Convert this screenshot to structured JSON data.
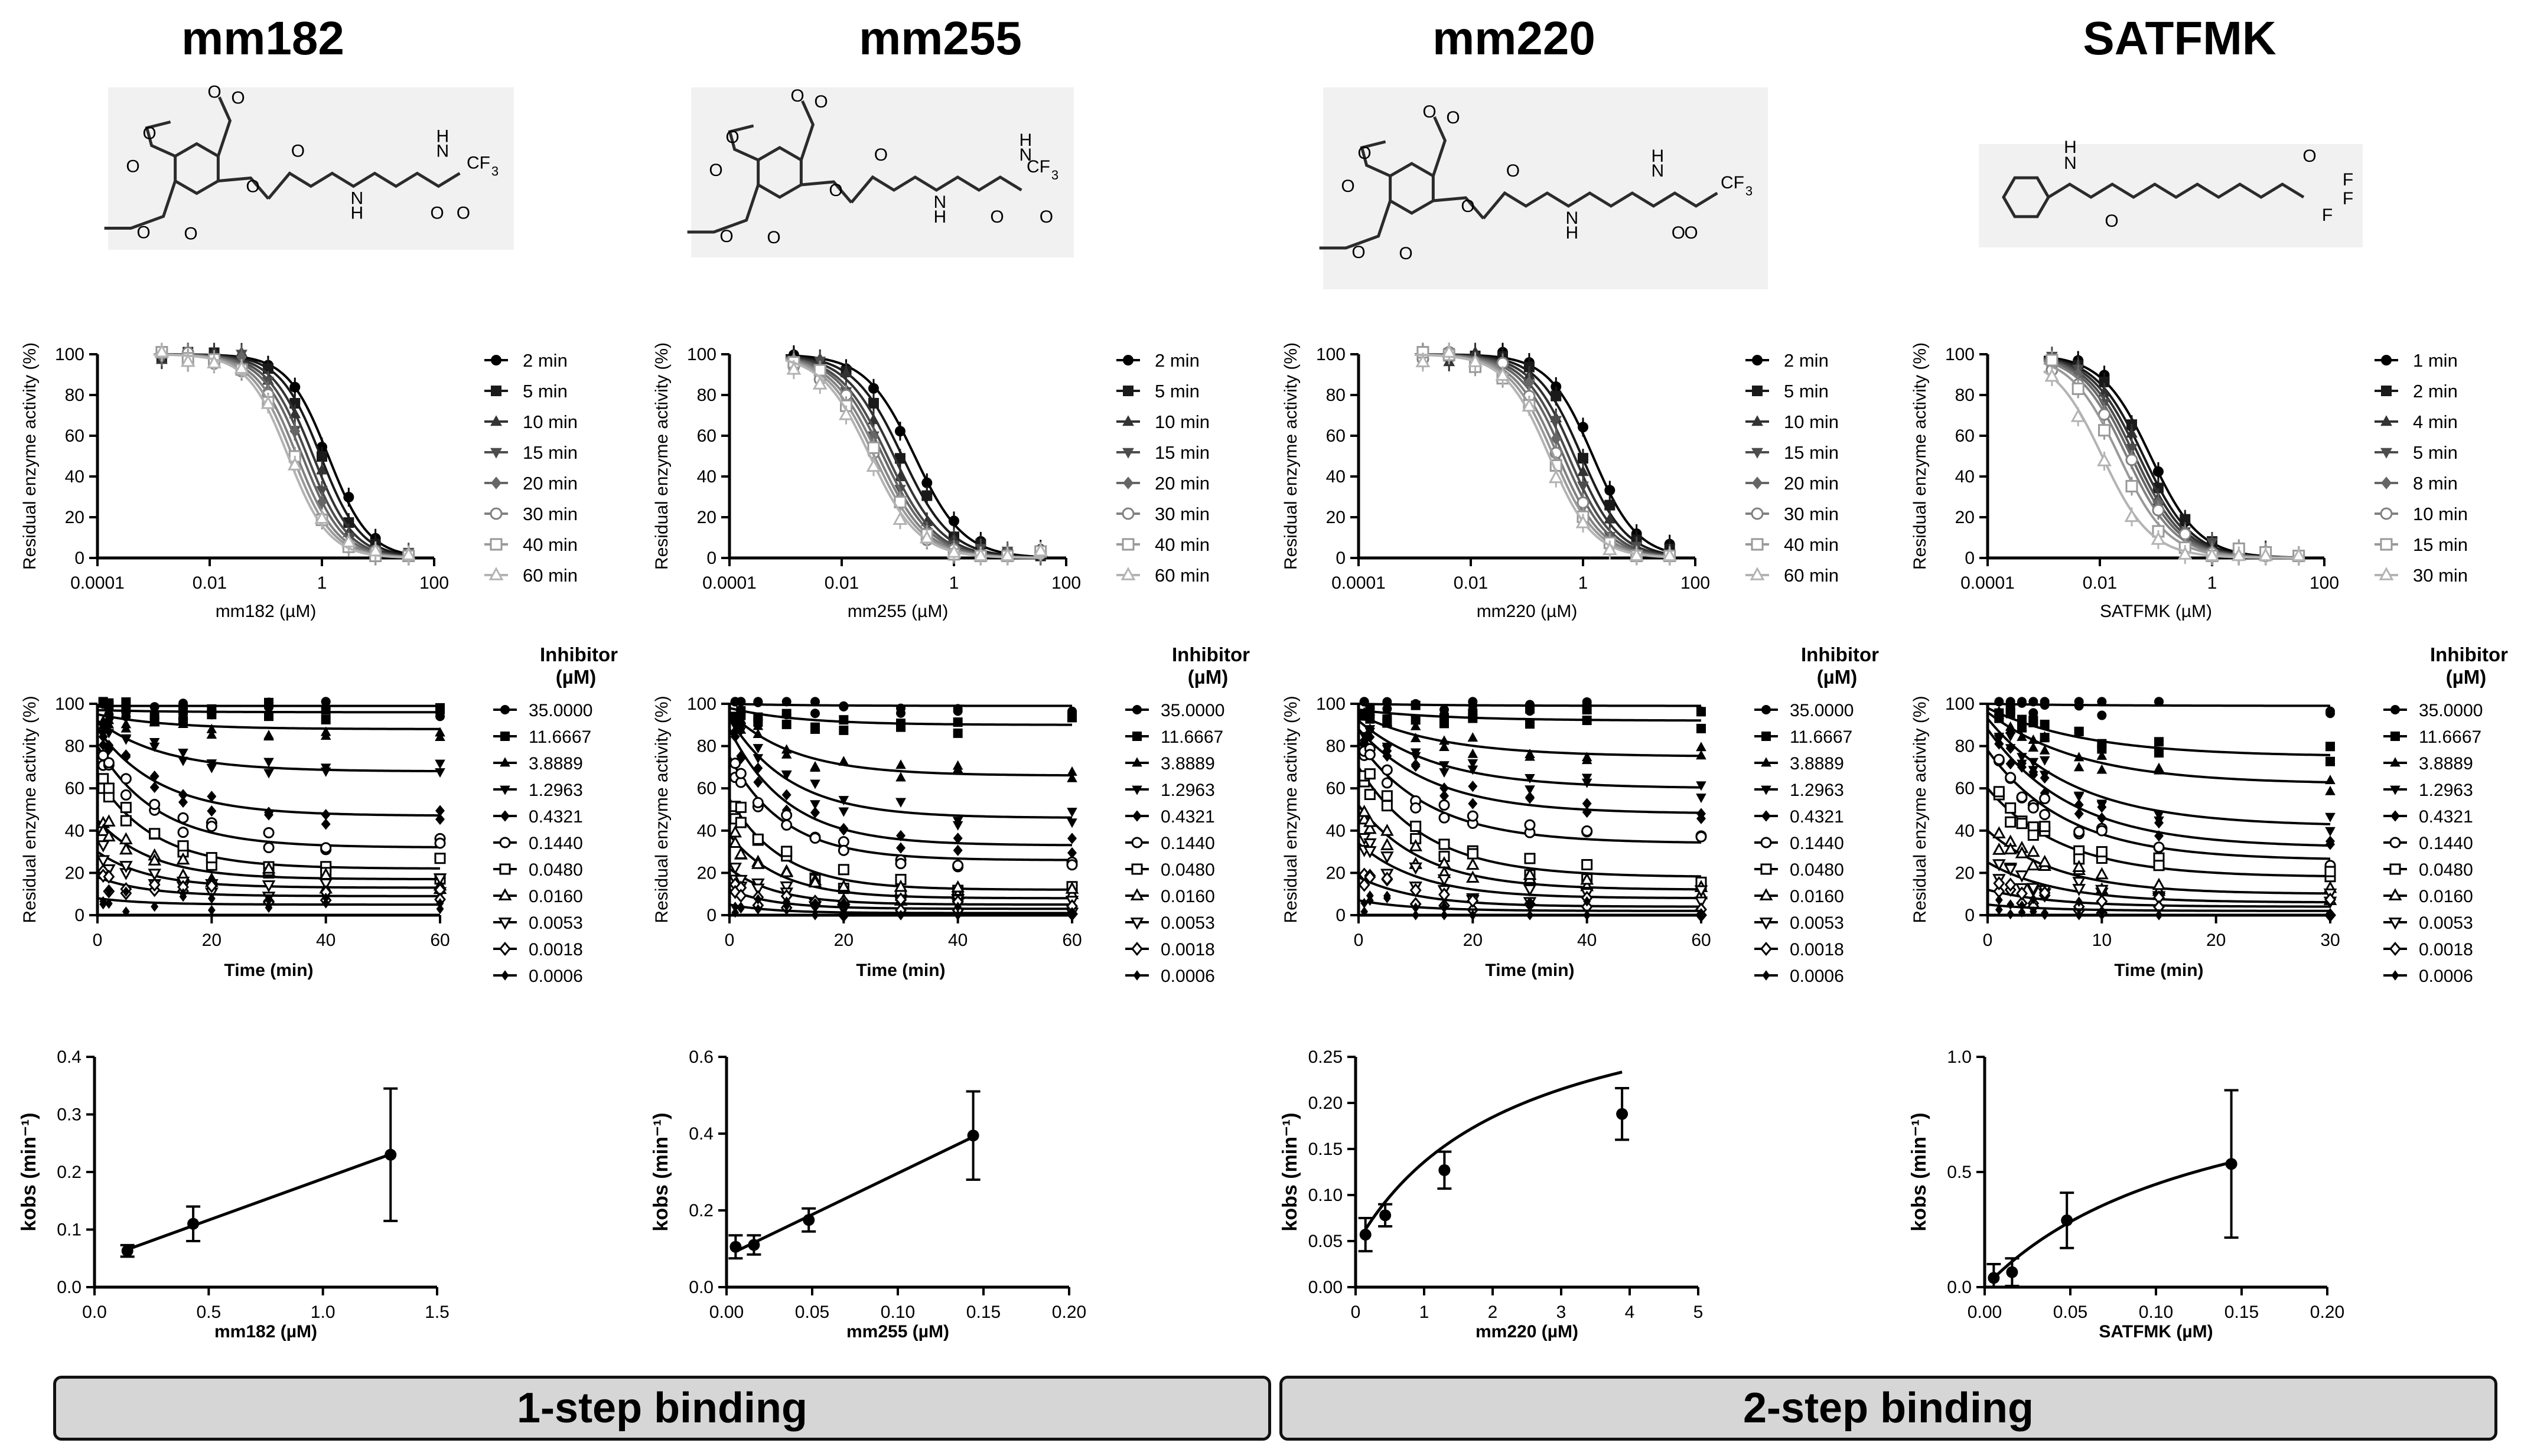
{
  "compounds": [
    {
      "name": "mm182",
      "structure": {
        "groups": [
          "O",
          "O",
          "O",
          "O",
          "O",
          "O",
          "O",
          "O",
          "N",
          "H",
          "N",
          "H",
          "O",
          "O",
          "CF",
          "3"
        ]
      }
    },
    {
      "name": "mm255",
      "structure": {
        "groups": [
          "O",
          "O",
          "O",
          "O",
          "O",
          "O",
          "O",
          "O",
          "N",
          "H",
          "N",
          "H",
          "O",
          "O",
          "CF",
          "3"
        ]
      }
    },
    {
      "name": "mm220",
      "structure": {
        "groups": [
          "O",
          "O",
          "O",
          "O",
          "O",
          "O",
          "O",
          "O",
          "N",
          "H",
          "N",
          "H",
          "O",
          "O",
          "CF",
          "3"
        ]
      }
    },
    {
      "name": "SATFMK",
      "structure": {
        "groups": [
          "H",
          "N",
          "O",
          "O",
          "F",
          "F",
          "F"
        ]
      }
    }
  ],
  "banners": [
    {
      "label": "1-step binding"
    },
    {
      "label": "2-step binding"
    }
  ],
  "chart_data": [
    {
      "type": "line",
      "panel": "dose-response",
      "compound": "mm182",
      "xlabel": "mm182 (µM)",
      "ylabel": "Residual enzyme activity (%)",
      "xscale": "log",
      "xlim": [
        0.0001,
        100
      ],
      "ylim": [
        0,
        100
      ],
      "xticks": [
        "0.0001",
        "0.01",
        "1",
        "100"
      ],
      "yticks": [
        "0",
        "20",
        "40",
        "60",
        "80",
        "100"
      ],
      "legend": [
        "2 min",
        "5 min",
        "10 min",
        "15 min",
        "20 min",
        "30 min",
        "40 min",
        "60 min"
      ],
      "ic50": [
        1.3,
        0.95,
        0.7,
        0.55,
        0.45,
        0.36,
        0.3,
        0.25
      ],
      "hill": 1.2,
      "x": [
        0.0014,
        0.0041,
        0.012,
        0.037,
        0.11,
        0.33,
        1.0,
        3.0,
        9.0,
        35.0
      ]
    },
    {
      "type": "line",
      "panel": "dose-response",
      "compound": "mm255",
      "xlabel": "mm255 (µM)",
      "ylabel": "Residual enzyme activity (%)",
      "xscale": "log",
      "xlim": [
        0.0001,
        100
      ],
      "ylim": [
        0,
        100
      ],
      "xticks": [
        "0.0001",
        "0.01",
        "1",
        "100"
      ],
      "yticks": [
        "0",
        "20",
        "40",
        "60",
        "80",
        "100"
      ],
      "legend": [
        "2 min",
        "5 min",
        "10 min",
        "15 min",
        "20 min",
        "30 min",
        "40 min",
        "60 min"
      ],
      "ic50": [
        0.2,
        0.12,
        0.085,
        0.065,
        0.055,
        0.045,
        0.038,
        0.032
      ],
      "hill": 1.0,
      "x": [
        0.0014,
        0.0041,
        0.012,
        0.037,
        0.11,
        0.33,
        1.0,
        3.0,
        9.0,
        35.0
      ]
    },
    {
      "type": "line",
      "panel": "dose-response",
      "compound": "mm220",
      "xlabel": "mm220 (µM)",
      "ylabel": "Residual enzyme activity (%)",
      "xscale": "log",
      "xlim": [
        0.0001,
        100
      ],
      "ylim": [
        0,
        100
      ],
      "xticks": [
        "0.0001",
        "0.01",
        "1",
        "100"
      ],
      "yticks": [
        "0",
        "20",
        "40",
        "60",
        "80",
        "100"
      ],
      "legend": [
        "2 min",
        "5 min",
        "10 min",
        "15 min",
        "20 min",
        "30 min",
        "40 min",
        "60 min"
      ],
      "ic50": [
        1.5,
        0.95,
        0.7,
        0.55,
        0.45,
        0.36,
        0.3,
        0.25
      ],
      "hill": 1.1,
      "x": [
        0.0014,
        0.0041,
        0.012,
        0.037,
        0.11,
        0.33,
        1.0,
        3.0,
        9.0,
        35.0
      ]
    },
    {
      "type": "line",
      "panel": "dose-response",
      "compound": "SATFMK",
      "xlabel": "SATFMK (µM)",
      "ylabel": "Residual enzyme activity (%)",
      "xscale": "log",
      "xlim": [
        0.0001,
        100
      ],
      "ylim": [
        0,
        100
      ],
      "xticks": [
        "0.0001",
        "0.01",
        "1",
        "100"
      ],
      "yticks": [
        "0",
        "20",
        "40",
        "60",
        "80",
        "100"
      ],
      "legend": [
        "1 min",
        "2 min",
        "4 min",
        "5 min",
        "8 min",
        "10 min",
        "15 min",
        "30 min"
      ],
      "ic50": [
        0.08,
        0.06,
        0.05,
        0.042,
        0.036,
        0.03,
        0.022,
        0.011
      ],
      "hill": 1.0,
      "x": [
        0.0014,
        0.0041,
        0.012,
        0.037,
        0.11,
        0.33,
        1.0,
        3.0,
        9.0,
        35.0
      ]
    },
    {
      "type": "scatter",
      "panel": "progress",
      "compound": "mm182",
      "xlabel": "Time (min)",
      "ylabel": "Residual enzyme activity (%)",
      "xlim": [
        0,
        60
      ],
      "ylim": [
        0,
        100
      ],
      "xticks": [
        "0",
        "20",
        "40",
        "60"
      ],
      "yticks": [
        "0",
        "20",
        "40",
        "60",
        "80",
        "100"
      ],
      "legend_title": "Inhibitor (µM)",
      "concentrations": [
        "35.0000",
        "11.6667",
        "3.8889",
        "1.2963",
        "0.4321",
        "0.1440",
        "0.0480",
        "0.0160",
        "0.0053",
        "0.0018",
        "0.0006"
      ],
      "times": [
        1,
        2,
        5,
        10,
        15,
        20,
        30,
        40,
        60
      ],
      "v0": [
        99,
        97,
        95,
        92,
        88,
        80,
        65,
        45,
        30,
        18,
        8
      ],
      "vs": [
        99,
        96,
        88,
        68,
        47,
        32,
        22,
        17,
        13,
        9,
        5
      ],
      "kobs": 0.12
    },
    {
      "type": "scatter",
      "panel": "progress",
      "compound": "mm255",
      "xlabel": "Time (min)",
      "ylabel": "Residual enzyme activity (%)",
      "xlim": [
        0,
        60
      ],
      "ylim": [
        0,
        100
      ],
      "xticks": [
        "0",
        "20",
        "40",
        "60"
      ],
      "yticks": [
        "0",
        "20",
        "40",
        "60",
        "80",
        "100"
      ],
      "legend_title": "Inhibitor (µM)",
      "concentrations": [
        "35.0000",
        "11.6667",
        "3.8889",
        "1.2963",
        "0.4321",
        "0.1440",
        "0.0480",
        "0.0160",
        "0.0053",
        "0.0018",
        "0.0006"
      ],
      "times": [
        1,
        2,
        5,
        10,
        15,
        20,
        30,
        40,
        60
      ],
      "v0": [
        100,
        98,
        96,
        93,
        88,
        75,
        55,
        38,
        22,
        12,
        5
      ],
      "vs": [
        99,
        90,
        66,
        46,
        33,
        26,
        12,
        8,
        5,
        3,
        1
      ],
      "kobs": 0.13
    },
    {
      "type": "scatter",
      "panel": "progress",
      "compound": "mm220",
      "xlabel": "Time (min)",
      "ylabel": "Residual enzyme activity (%)",
      "xlim": [
        0,
        60
      ],
      "ylim": [
        0,
        100
      ],
      "xticks": [
        "0",
        "20",
        "40",
        "60"
      ],
      "yticks": [
        "0",
        "20",
        "40",
        "60",
        "80",
        "100"
      ],
      "legend_title": "Inhibitor (µM)",
      "concentrations": [
        "35.0000",
        "11.6667",
        "3.8889",
        "1.2963",
        "0.4321",
        "0.1440",
        "0.0480",
        "0.0160",
        "0.0053",
        "0.0018",
        "0.0006"
      ],
      "times": [
        1,
        2,
        5,
        10,
        15,
        20,
        30,
        40,
        60
      ],
      "v0": [
        100,
        97,
        95,
        92,
        88,
        82,
        70,
        52,
        34,
        18,
        7
      ],
      "vs": [
        99,
        92,
        75,
        60,
        48,
        34,
        18,
        12,
        8,
        4,
        2
      ],
      "kobs": 0.1
    },
    {
      "type": "scatter",
      "panel": "progress",
      "compound": "SATFMK",
      "xlabel": "Time (min)",
      "ylabel": "Residual enzyme activity (%)",
      "xlim": [
        0,
        30
      ],
      "ylim": [
        0,
        100
      ],
      "xticks": [
        "0",
        "10",
        "20",
        "30"
      ],
      "yticks": [
        "0",
        "20",
        "40",
        "60",
        "80",
        "100"
      ],
      "legend_title": "Inhibitor (µM)",
      "concentrations": [
        "35.0000",
        "11.6667",
        "3.8889",
        "1.2963",
        "0.4321",
        "0.1440",
        "0.0480",
        "0.0160",
        "0.0053",
        "0.0018",
        "0.0006"
      ],
      "times": [
        1,
        2,
        3,
        4,
        5,
        8,
        10,
        15,
        30
      ],
      "v0": [
        100,
        98,
        96,
        93,
        88,
        78,
        60,
        40,
        25,
        12,
        5
      ],
      "vs": [
        99,
        75,
        62,
        42,
        32,
        26,
        18,
        10,
        6,
        4,
        2
      ],
      "kobs": 0.18
    },
    {
      "type": "line",
      "panel": "kobs",
      "compound": "mm182",
      "model": "linear",
      "xlabel": "mm182 (µM)",
      "ylabel": "kobs (min⁻¹)",
      "xlim": [
        0,
        1.5
      ],
      "ylim": [
        0,
        0.4
      ],
      "xticks": [
        "0.0",
        "0.5",
        "1.0",
        "1.5"
      ],
      "yticks": [
        "0.0",
        "0.1",
        "0.2",
        "0.3",
        "0.4"
      ],
      "x": [
        0.144,
        0.4321,
        1.2963
      ],
      "y": [
        0.063,
        0.11,
        0.23
      ],
      "err": [
        0.01,
        0.03,
        0.115
      ]
    },
    {
      "type": "line",
      "panel": "kobs",
      "compound": "mm255",
      "model": "linear",
      "xlabel": "mm255 (µM)",
      "ylabel": "kobs (min⁻¹)",
      "xlim": [
        0,
        0.2
      ],
      "ylim": [
        0,
        0.6
      ],
      "xticks": [
        "0.00",
        "0.05",
        "0.10",
        "0.15",
        "0.20"
      ],
      "yticks": [
        "0.0",
        "0.2",
        "0.4",
        "0.6"
      ],
      "x": [
        0.0053,
        0.016,
        0.048,
        0.144
      ],
      "y": [
        0.105,
        0.11,
        0.175,
        0.395
      ],
      "err": [
        0.03,
        0.025,
        0.03,
        0.115
      ]
    },
    {
      "type": "line",
      "panel": "kobs",
      "compound": "mm220",
      "model": "hyperbolic",
      "xlabel": "mm220 (µM)",
      "ylabel": "kobs (min⁻¹)",
      "xlim": [
        0,
        5
      ],
      "ylim": [
        0,
        0.25
      ],
      "xticks": [
        "0",
        "1",
        "2",
        "3",
        "4",
        "5"
      ],
      "yticks": [
        "0.00",
        "0.05",
        "0.10",
        "0.15",
        "0.20",
        "0.25"
      ],
      "x": [
        0.144,
        0.4321,
        1.2963,
        3.8889
      ],
      "y": [
        0.057,
        0.078,
        0.127,
        0.188
      ],
      "err": [
        0.018,
        0.012,
        0.02,
        0.028
      ],
      "fit": {
        "kinact": 0.3,
        "Ki": 2.3,
        "k0": 0.045
      }
    },
    {
      "type": "line",
      "panel": "kobs",
      "compound": "SATFMK",
      "model": "hyperbolic",
      "xlabel": "SATFMK (µM)",
      "ylabel": "kobs (min⁻¹)",
      "xlim": [
        0,
        0.2
      ],
      "ylim": [
        0,
        1.0
      ],
      "xticks": [
        "0.00",
        "0.05",
        "0.10",
        "0.15",
        "0.20"
      ],
      "yticks": [
        "0.0",
        "0.5",
        "1.0"
      ],
      "x": [
        0.0053,
        0.016,
        0.048,
        0.144
      ],
      "y": [
        0.04,
        0.065,
        0.29,
        0.535
      ],
      "err": [
        0.06,
        0.06,
        0.12,
        0.32
      ],
      "fit": {
        "kinact": 1.05,
        "Ki": 0.135,
        "k0": 0
      }
    }
  ]
}
